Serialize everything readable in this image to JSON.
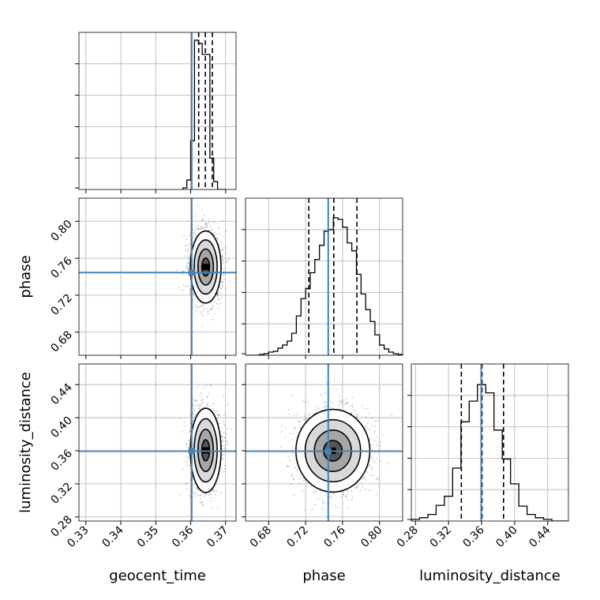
{
  "chart_data": {
    "type": "corner",
    "grid": true,
    "truth_color": "#4682b4",
    "hist_color": "#000000",
    "parameters": [
      {
        "name": "geocent_time",
        "label": "geocent_time",
        "range": [
          0.328,
          0.373
        ],
        "ticks": [
          0.33,
          0.34,
          0.35,
          0.36,
          0.37
        ],
        "tick_labels": [
          "0.33",
          "0.34",
          "0.35",
          "0.36",
          "0.37"
        ],
        "truth": 0.3603,
        "quantiles": [
          0.3623,
          0.3642,
          0.3662
        ]
      },
      {
        "name": "phase",
        "label": "phase",
        "range": [
          0.655,
          0.825
        ],
        "ticks": [
          0.68,
          0.72,
          0.76,
          0.8
        ],
        "tick_labels": [
          "0.68",
          "0.72",
          "0.76",
          "0.80"
        ],
        "truth": 0.7445,
        "quantiles": [
          0.7235,
          0.7505,
          0.7755
        ]
      },
      {
        "name": "luminosity_distance",
        "label": "luminosity_distance",
        "range": [
          0.275,
          0.465
        ],
        "ticks": [
          0.28,
          0.32,
          0.36,
          0.4,
          0.44
        ],
        "tick_labels": [
          "0.28",
          "0.32",
          "0.36",
          "0.40",
          "0.44"
        ],
        "truth": 0.3595,
        "quantiles": [
          0.3355,
          0.3605,
          0.3865
        ]
      }
    ],
    "histograms": [
      {
        "param": "geocent_time",
        "bin_edges": [
          0.3578,
          0.3589,
          0.36,
          0.3611,
          0.3622,
          0.3633,
          0.3644,
          0.3655,
          0.3666,
          0.3677,
          0.3688,
          0.3699
        ],
        "counts": [
          2,
          12,
          62,
          190,
          186,
          172,
          172,
          40,
          10,
          0,
          0
        ]
      },
      {
        "param": "phase",
        "bin_edges": [
          0.655,
          0.66,
          0.665,
          0.67,
          0.675,
          0.68,
          0.685,
          0.69,
          0.695,
          0.7,
          0.705,
          0.71,
          0.715,
          0.72,
          0.725,
          0.73,
          0.735,
          0.74,
          0.745,
          0.75,
          0.755,
          0.76,
          0.765,
          0.77,
          0.775,
          0.78,
          0.785,
          0.79,
          0.795,
          0.8,
          0.805,
          0.81,
          0.815,
          0.82,
          0.825
        ],
        "counts": [
          0,
          0,
          0,
          1,
          2,
          4,
          5,
          9,
          13,
          18,
          28,
          50,
          72,
          85,
          105,
          122,
          140,
          158,
          160,
          175,
          173,
          163,
          143,
          133,
          103,
          78,
          58,
          43,
          26,
          13,
          8,
          4,
          2,
          1
        ]
      },
      {
        "param": "luminosity_distance",
        "bin_edges": [
          0.275,
          0.285,
          0.295,
          0.305,
          0.315,
          0.325,
          0.335,
          0.345,
          0.355,
          0.365,
          0.375,
          0.385,
          0.395,
          0.405,
          0.415,
          0.425,
          0.435,
          0.445,
          0.455,
          0.465
        ],
        "counts": [
          2,
          4,
          8,
          19,
          30,
          64,
          120,
          145,
          165,
          155,
          110,
          75,
          45,
          18,
          8,
          4,
          2,
          0,
          0
        ]
      }
    ],
    "hist_ylims": [
      [
        0,
        200
      ],
      [
        0,
        200
      ],
      [
        0,
        190
      ]
    ],
    "scatter_panels": [
      {
        "x": "geocent_time",
        "y": "phase",
        "center": [
          0.3643,
          0.7505
        ],
        "sd": [
          0.0022,
          0.0195
        ]
      },
      {
        "x": "geocent_time",
        "y": "luminosity_distance",
        "center": [
          0.3643,
          0.3605
        ],
        "sd": [
          0.0022,
          0.0255
        ]
      },
      {
        "x": "phase",
        "y": "luminosity_distance",
        "center": [
          0.7495,
          0.36
        ],
        "sd": [
          0.02,
          0.025
        ]
      }
    ]
  }
}
